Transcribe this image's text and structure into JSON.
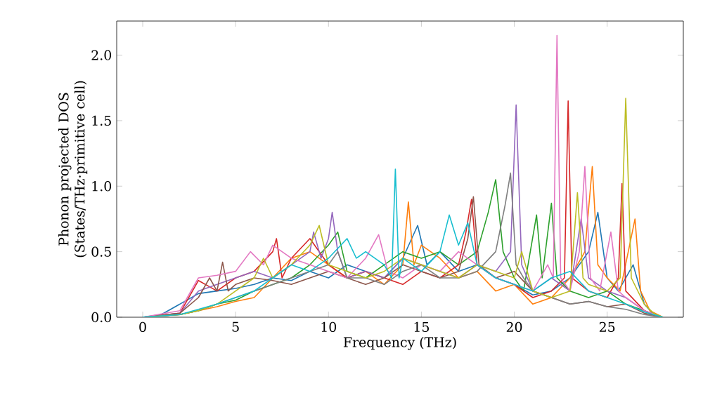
{
  "chart_data": {
    "type": "line",
    "xlabel": "Frequency (THz)",
    "ylabel": "Phonon projected DOS (States/THz·primitive cell)",
    "xlim": [
      -1.4,
      29.1
    ],
    "ylim": [
      0,
      2.26
    ],
    "xticks": [
      0,
      5,
      10,
      15,
      20,
      25
    ],
    "yticks": [
      {
        "value": 0,
        "label": "0.0"
      },
      {
        "value": 0.5,
        "label": "0.5"
      },
      {
        "value": 1,
        "label": "1.0"
      },
      {
        "value": 1.5,
        "label": "1.5"
      },
      {
        "value": 2,
        "label": "2.0"
      }
    ],
    "series": [
      {
        "color": "#1f77b4",
        "x": [
          0,
          1,
          2,
          3,
          4,
          5,
          6,
          7,
          8,
          9,
          10,
          11,
          12,
          13,
          14,
          14.8,
          15.3,
          16,
          17,
          18,
          19,
          20,
          21,
          22,
          23,
          24,
          24.5,
          25,
          25.6,
          26.4,
          27,
          27.5,
          28
        ],
        "values": [
          0,
          0.02,
          0.1,
          0.18,
          0.2,
          0.22,
          0.25,
          0.3,
          0.28,
          0.35,
          0.3,
          0.4,
          0.35,
          0.3,
          0.45,
          0.7,
          0.4,
          0.5,
          0.35,
          0.4,
          0.3,
          0.25,
          0.17,
          0.2,
          0.3,
          0.5,
          0.8,
          0.3,
          0.2,
          0.4,
          0.1,
          0.02,
          0
        ]
      },
      {
        "color": "#ff7f0e",
        "x": [
          0,
          2,
          3,
          4,
          5,
          6,
          7,
          8,
          9,
          10,
          11,
          12,
          13,
          14,
          14.3,
          14.6,
          15,
          16,
          17,
          18,
          19,
          20,
          21,
          22,
          23,
          23.8,
          24.2,
          24.5,
          25,
          25.7,
          26.5,
          26.8,
          27.3,
          28
        ],
        "values": [
          0,
          0.02,
          0.05,
          0.08,
          0.12,
          0.15,
          0.3,
          0.45,
          0.5,
          0.4,
          0.3,
          0.35,
          0.25,
          0.4,
          0.88,
          0.4,
          0.55,
          0.45,
          0.3,
          0.35,
          0.2,
          0.25,
          0.1,
          0.15,
          0.3,
          0.5,
          1.15,
          0.4,
          0.3,
          0.2,
          0.75,
          0.2,
          0.05,
          0
        ]
      },
      {
        "color": "#2ca02c",
        "x": [
          0,
          2,
          3,
          4,
          5,
          6,
          7,
          8,
          9,
          10,
          10.5,
          11,
          12,
          13,
          14,
          15,
          16,
          17,
          18,
          18.6,
          19,
          19.4,
          20,
          20.5,
          21.2,
          21.5,
          22,
          22.3,
          23,
          24,
          25,
          26,
          27,
          27.5,
          28
        ],
        "values": [
          0,
          0.02,
          0.05,
          0.1,
          0.13,
          0.2,
          0.25,
          0.3,
          0.4,
          0.55,
          0.65,
          0.35,
          0.3,
          0.4,
          0.5,
          0.45,
          0.5,
          0.4,
          0.5,
          0.8,
          1.05,
          0.5,
          0.3,
          0.2,
          0.78,
          0.3,
          0.87,
          0.3,
          0.2,
          0.15,
          0.2,
          0.1,
          0.05,
          0.02,
          0
        ]
      },
      {
        "color": "#d62728",
        "x": [
          0,
          2,
          3,
          4,
          5,
          6,
          7,
          7.2,
          7.5,
          8,
          9,
          10,
          11,
          12,
          13,
          14,
          15,
          16,
          17,
          17.4,
          17.7,
          18,
          19,
          20,
          21,
          22,
          22.7,
          22.9,
          23.1,
          24,
          25,
          25.6,
          25.8,
          26,
          27,
          28
        ],
        "values": [
          0,
          0.03,
          0.28,
          0.2,
          0.3,
          0.35,
          0.5,
          0.6,
          0.3,
          0.45,
          0.6,
          0.4,
          0.3,
          0.35,
          0.3,
          0.25,
          0.35,
          0.3,
          0.4,
          0.65,
          0.9,
          0.4,
          0.3,
          0.25,
          0.15,
          0.2,
          0.3,
          1.65,
          0.3,
          0.2,
          0.15,
          0.3,
          1.02,
          0.2,
          0.05,
          0
        ]
      },
      {
        "color": "#9467bd",
        "x": [
          0,
          2,
          3,
          4,
          5,
          6,
          7,
          8,
          9,
          9.2,
          9.6,
          10,
          10.2,
          10.5,
          11,
          12,
          13,
          14,
          15,
          16,
          17,
          18,
          19,
          19.8,
          20.1,
          20.4,
          21,
          22,
          23,
          23.6,
          24,
          25,
          26,
          27,
          28
        ],
        "values": [
          0,
          0.03,
          0.2,
          0.25,
          0.3,
          0.35,
          0.3,
          0.4,
          0.5,
          0.65,
          0.45,
          0.6,
          0.8,
          0.5,
          0.3,
          0.35,
          0.3,
          0.45,
          0.4,
          0.35,
          0.3,
          0.4,
          0.35,
          0.5,
          1.62,
          0.4,
          0.2,
          0.3,
          0.2,
          0.75,
          0.3,
          0.2,
          0.15,
          0.05,
          0
        ]
      },
      {
        "color": "#8c564b",
        "x": [
          0,
          2,
          3,
          3.6,
          4,
          4.3,
          4.6,
          5,
          6,
          7,
          8,
          9,
          10,
          11,
          12,
          13,
          14,
          15,
          16,
          17,
          17.5,
          17.8,
          18.1,
          19,
          20,
          21,
          22,
          23,
          24,
          25,
          26,
          27,
          28
        ],
        "values": [
          0,
          0.03,
          0.15,
          0.3,
          0.2,
          0.42,
          0.2,
          0.25,
          0.3,
          0.28,
          0.25,
          0.3,
          0.35,
          0.3,
          0.25,
          0.3,
          0.4,
          0.35,
          0.3,
          0.35,
          0.6,
          0.92,
          0.4,
          0.3,
          0.35,
          0.2,
          0.15,
          0.1,
          0.12,
          0.08,
          0.1,
          0.03,
          0
        ]
      },
      {
        "color": "#e377c2",
        "x": [
          0,
          2,
          3,
          4,
          5,
          5.8,
          6.5,
          7,
          8,
          9,
          10,
          11,
          12,
          12.7,
          13.2,
          14,
          15,
          16,
          17,
          18,
          19,
          20,
          21,
          21.8,
          22.1,
          22.3,
          22.5,
          23,
          23.5,
          23.8,
          24.1,
          24.6,
          25.2,
          25.6,
          26,
          27,
          28
        ],
        "values": [
          0,
          0.05,
          0.3,
          0.32,
          0.35,
          0.5,
          0.4,
          0.55,
          0.45,
          0.4,
          0.35,
          0.3,
          0.45,
          0.63,
          0.35,
          0.3,
          0.4,
          0.35,
          0.5,
          0.4,
          0.3,
          0.25,
          0.2,
          0.4,
          0.3,
          2.15,
          0.3,
          0.2,
          0.5,
          1.15,
          0.3,
          0.2,
          0.65,
          0.2,
          0.15,
          0.05,
          0
        ]
      },
      {
        "color": "#7f7f7f",
        "x": [
          0,
          2,
          3,
          4,
          5,
          6,
          7,
          8,
          9,
          10,
          10.5,
          11,
          12,
          13,
          14,
          15,
          16,
          17,
          18,
          19,
          19.5,
          19.8,
          20.1,
          20.5,
          21,
          22,
          23,
          24,
          25,
          26,
          27,
          28
        ],
        "values": [
          0,
          0.02,
          0.05,
          0.1,
          0.15,
          0.2,
          0.25,
          0.3,
          0.35,
          0.4,
          0.5,
          0.3,
          0.3,
          0.25,
          0.35,
          0.4,
          0.3,
          0.3,
          0.35,
          0.5,
          0.85,
          1.1,
          0.4,
          0.3,
          0.2,
          0.15,
          0.1,
          0.12,
          0.08,
          0.06,
          0.02,
          0
        ]
      },
      {
        "color": "#bcbd22",
        "x": [
          0,
          2,
          3,
          4,
          5,
          6,
          6.5,
          7,
          8,
          9,
          9.5,
          10,
          11,
          12,
          13,
          14,
          15,
          16,
          17,
          18,
          19,
          20,
          20.4,
          21,
          22,
          23,
          23.4,
          23.7,
          24,
          25,
          25.7,
          26,
          26.3,
          27,
          27.5,
          28
        ],
        "values": [
          0,
          0.02,
          0.05,
          0.1,
          0.2,
          0.3,
          0.45,
          0.3,
          0.4,
          0.55,
          0.7,
          0.4,
          0.35,
          0.3,
          0.35,
          0.45,
          0.4,
          0.35,
          0.3,
          0.4,
          0.35,
          0.3,
          0.5,
          0.2,
          0.15,
          0.2,
          0.95,
          0.3,
          0.25,
          0.2,
          0.3,
          1.67,
          0.3,
          0.1,
          0.03,
          0
        ]
      },
      {
        "color": "#17becf",
        "x": [
          0,
          2,
          3,
          4,
          5,
          6,
          7,
          8,
          9,
          10,
          11,
          11.5,
          12,
          13,
          13.4,
          13.6,
          13.8,
          14,
          15,
          16,
          16.5,
          17,
          17.5,
          18,
          19,
          20,
          21,
          22,
          23,
          24,
          25,
          26,
          27,
          28
        ],
        "values": [
          0,
          0.02,
          0.06,
          0.1,
          0.15,
          0.2,
          0.3,
          0.4,
          0.35,
          0.45,
          0.6,
          0.45,
          0.5,
          0.4,
          0.3,
          1.13,
          0.3,
          0.45,
          0.35,
          0.5,
          0.78,
          0.55,
          0.72,
          0.4,
          0.3,
          0.25,
          0.2,
          0.3,
          0.35,
          0.2,
          0.15,
          0.1,
          0.04,
          0
        ]
      }
    ]
  }
}
